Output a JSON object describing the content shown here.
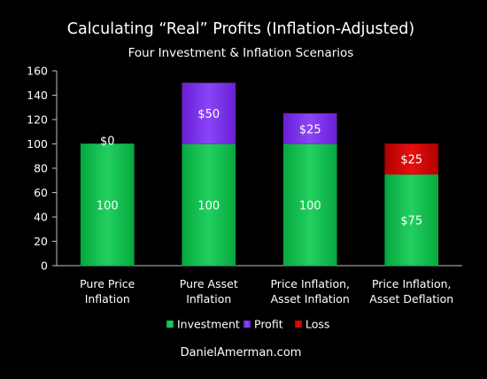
{
  "chart_data": {
    "type": "bar",
    "stacked": true,
    "title": "Calculating “Real” Profits (Inflation-Adjusted)",
    "subtitle": "Four Investment & Inflation Scenarios",
    "categories": [
      [
        "Pure Price",
        "Inflation"
      ],
      [
        "Pure Asset",
        "Inflation"
      ],
      [
        "Price Inflation,",
        "Asset Inflation"
      ],
      [
        "Price Inflation,",
        "Asset Deflation"
      ]
    ],
    "series": [
      {
        "name": "Investment",
        "color": "#00b050",
        "values": [
          100,
          100,
          100,
          75
        ],
        "labels": [
          "100",
          "100",
          "100",
          "$75"
        ]
      },
      {
        "name": "Profit",
        "color": "#7030a0",
        "values": [
          0,
          50,
          25,
          0
        ],
        "labels": [
          "$0",
          "$50",
          "$25",
          ""
        ]
      },
      {
        "name": "Loss",
        "color": "#c00000",
        "values": [
          0,
          0,
          0,
          25
        ],
        "labels": [
          "",
          "",
          "",
          "$25"
        ]
      }
    ],
    "ylim": [
      0,
      160
    ],
    "yticks": [
      0,
      20,
      40,
      60,
      80,
      100,
      120,
      140,
      160
    ],
    "grid": false,
    "legend_position": "bottom"
  },
  "footer": "DanielAmerman.com"
}
